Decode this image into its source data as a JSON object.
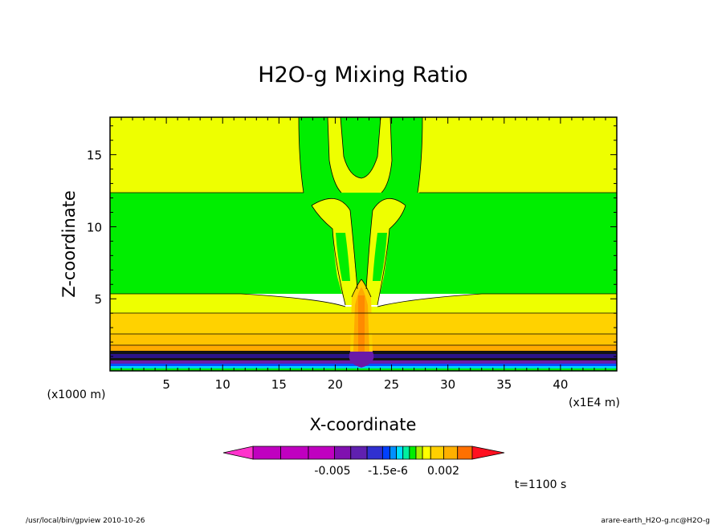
{
  "chart_data": {
    "type": "heatmap",
    "title": "H2O-g Mixing Ratio",
    "xlabel": "X-coordinate",
    "ylabel": "Z-coordinate",
    "x_unit": "(x1E4 m)",
    "y_unit": "(x1000 m)",
    "xlim": [
      0,
      45
    ],
    "ylim": [
      0,
      17.6
    ],
    "x_ticks": [
      "5",
      "10",
      "15",
      "20",
      "25",
      "30",
      "35",
      "40"
    ],
    "y_ticks": [
      "5",
      "10",
      "15"
    ],
    "colorbar": {
      "tick_labels": [
        "-0.005",
        "-1.5e-6",
        "0.002"
      ],
      "colors": [
        "#ff33cc",
        "#c000c0",
        "#c000c0",
        "#c000c0",
        "#8010b0",
        "#6020b0",
        "#3030d0",
        "#0040ff",
        "#0090ff",
        "#00e0ff",
        "#00f0a0",
        "#00ee00",
        "#aaee00",
        "#ffff00",
        "#ffd000",
        "#ffb000",
        "#ff7000",
        "#ff1020"
      ]
    },
    "palette": {
      "yellow": "#eeff00",
      "green": "#00ee00",
      "gold": "#ffd200",
      "amber": "#ffaa00",
      "orange": "#ff8a00",
      "purple": "#6a1aa8",
      "indigo": "#2b148a",
      "blue": "#0050ff",
      "cyan": "#00d0ff",
      "magenta": "#c800c0",
      "dark": "#101010"
    }
  },
  "annotations": {
    "time": "t=1100 s",
    "footer_left": "/usr/local/bin/gpview  2010-10-26",
    "footer_right": "arare-earth_H2O-g.nc@H2O-g"
  }
}
